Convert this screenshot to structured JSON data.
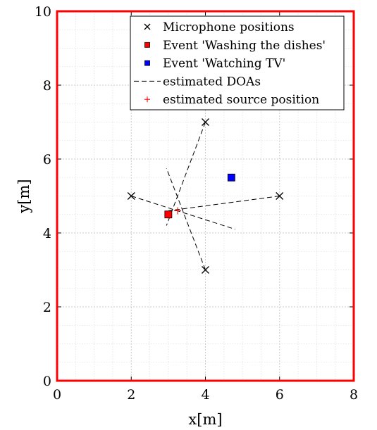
{
  "chart_data": {
    "type": "scatter",
    "xlabel": "x[m]",
    "ylabel": "y[m]",
    "xlim": [
      0,
      8
    ],
    "ylim": [
      0,
      10
    ],
    "x_ticks": [
      0,
      2,
      4,
      6,
      8
    ],
    "y_ticks": [
      0,
      2,
      4,
      6,
      8,
      10
    ],
    "x_tick_labels": [
      "0",
      "2",
      "4",
      "6",
      "8"
    ],
    "y_tick_labels": [
      "0",
      "2",
      "4",
      "6",
      "8",
      "10"
    ],
    "grid": true,
    "minor_grid": true,
    "legend_position": "top-right",
    "frame_color": "#ff0000",
    "series": [
      {
        "name": "Microphone positions",
        "kind": "marker",
        "marker": "x",
        "color": "#000000",
        "points": [
          [
            2,
            5
          ],
          [
            4,
            7
          ],
          [
            6,
            5
          ],
          [
            4,
            3
          ]
        ]
      },
      {
        "name": "Event 'Washing the dishes'",
        "kind": "marker",
        "marker": "square",
        "color": "#ff0000",
        "points": [
          [
            3.0,
            4.5
          ]
        ]
      },
      {
        "name": "Event 'Watching TV'",
        "kind": "marker",
        "marker": "square",
        "color": "#0000ff",
        "points": [
          [
            4.7,
            5.5
          ]
        ]
      },
      {
        "name": "estimated DOAs",
        "kind": "dashed-lines",
        "color": "#000000",
        "segments": [
          [
            [
              2,
              5
            ],
            [
              4.8,
              4.1
            ]
          ],
          [
            [
              4,
              7
            ],
            [
              2.95,
              4.2
            ]
          ],
          [
            [
              6,
              5
            ],
            [
              3.0,
              4.6
            ]
          ],
          [
            [
              4,
              3
            ],
            [
              2.95,
              5.75
            ]
          ]
        ]
      },
      {
        "name": "estimated source position",
        "kind": "marker",
        "marker": "plus",
        "color": "#ff0000",
        "points": [
          [
            3.25,
            4.6
          ]
        ]
      }
    ]
  }
}
